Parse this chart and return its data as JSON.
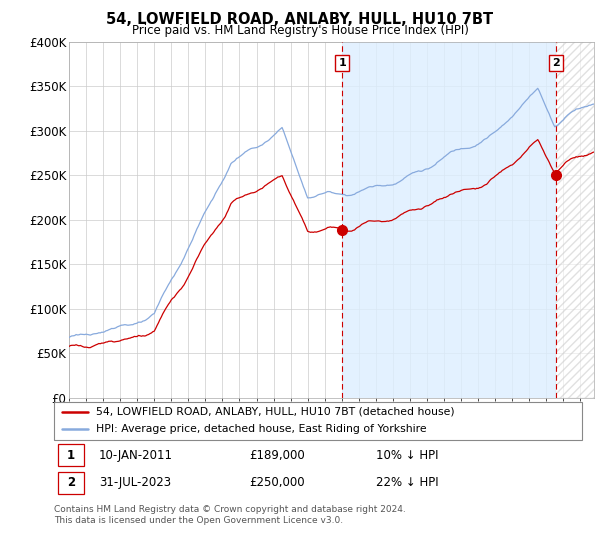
{
  "title": "54, LOWFIELD ROAD, ANLABY, HULL, HU10 7BT",
  "subtitle": "Price paid vs. HM Land Registry's House Price Index (HPI)",
  "ylim": [
    0,
    400000
  ],
  "yticks": [
    0,
    50000,
    100000,
    150000,
    200000,
    250000,
    300000,
    350000,
    400000
  ],
  "xlim_start": 1995.0,
  "xlim_end": 2025.8,
  "sale1_date": 2011.03,
  "sale1_price": 189000,
  "sale1_label": "1",
  "sale2_date": 2023.58,
  "sale2_price": 250000,
  "sale2_label": "2",
  "legend_line1": "54, LOWFIELD ROAD, ANLABY, HULL, HU10 7BT (detached house)",
  "legend_line2": "HPI: Average price, detached house, East Riding of Yorkshire",
  "annotation1_date": "10-JAN-2011",
  "annotation1_price": "£189,000",
  "annotation1_hpi": "10% ↓ HPI",
  "annotation2_date": "31-JUL-2023",
  "annotation2_price": "£250,000",
  "annotation2_hpi": "22% ↓ HPI",
  "footer": "Contains HM Land Registry data © Crown copyright and database right 2024.\nThis data is licensed under the Open Government Licence v3.0.",
  "hpi_color": "#88aadd",
  "sale_color": "#cc0000",
  "grid_color": "#cccccc",
  "bg_color": "#ffffff",
  "fill_color": "#ddeeff",
  "plot_bg": "#ffffff",
  "vline_color": "#cc0000",
  "hatch_color": "#cccccc"
}
